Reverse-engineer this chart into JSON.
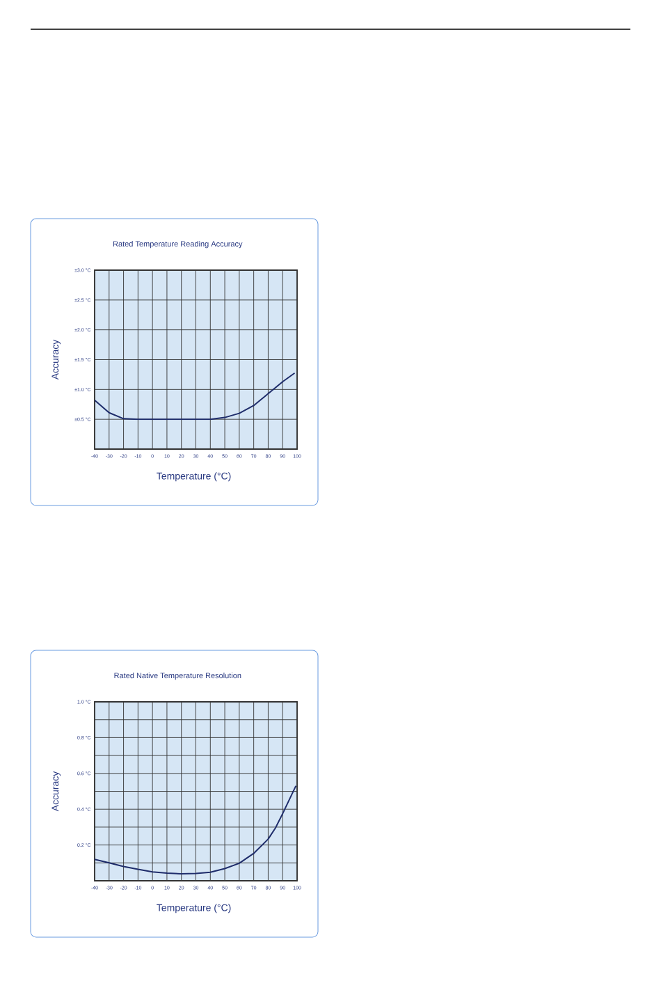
{
  "chart_data": [
    {
      "type": "line",
      "title": "Rated Temperature Reading Accuracy",
      "xlabel": "Temperature (°C)",
      "ylabel": "Accuracy",
      "color": "#1f2d6b",
      "grid": true,
      "x": [
        -40,
        -30,
        -20,
        -10,
        0,
        10,
        20,
        30,
        40,
        50,
        60,
        70,
        80,
        90,
        98
      ],
      "values": [
        0.82,
        0.61,
        0.51,
        0.5,
        0.5,
        0.5,
        0.5,
        0.5,
        0.5,
        0.53,
        0.6,
        0.73,
        0.93,
        1.13,
        1.27
      ],
      "xlim": [
        -40,
        100
      ],
      "ylim": [
        0,
        3
      ],
      "xticks": [
        -40,
        -30,
        -20,
        -10,
        0,
        10,
        20,
        30,
        40,
        50,
        60,
        70,
        80,
        90,
        100
      ],
      "yticks": [
        {
          "value": 0.5,
          "label": "±0.5 °C"
        },
        {
          "value": 1.0,
          "label": "±1.0 °C"
        },
        {
          "value": 1.5,
          "label": "±1.5 °C"
        },
        {
          "value": 2.0,
          "label": "±2.0 °C"
        },
        {
          "value": 2.5,
          "label": "±2.5 °C"
        },
        {
          "value": 3.0,
          "label": "±3.0 °C"
        }
      ]
    },
    {
      "type": "line",
      "title": "Rated Native Temperature Resolution",
      "xlabel": "Temperature (°C)",
      "ylabel": "Accuracy",
      "color": "#1f2d6b",
      "grid": true,
      "x": [
        -40,
        -30,
        -20,
        -10,
        0,
        10,
        20,
        30,
        40,
        50,
        60,
        70,
        80,
        85,
        90,
        99
      ],
      "values": [
        0.12,
        0.1,
        0.08,
        0.064,
        0.05,
        0.043,
        0.039,
        0.041,
        0.048,
        0.068,
        0.098,
        0.153,
        0.233,
        0.295,
        0.375,
        0.528
      ],
      "xlim": [
        -40,
        100
      ],
      "ylim": [
        0,
        1
      ],
      "xticks": [
        -40,
        -30,
        -20,
        -10,
        0,
        10,
        20,
        30,
        40,
        50,
        60,
        70,
        80,
        90,
        100
      ],
      "yticks": [
        {
          "value": 0.1,
          "label": null
        },
        {
          "value": 0.2,
          "label": "0.2 °C"
        },
        {
          "value": 0.3,
          "label": null
        },
        {
          "value": 0.4,
          "label": "0.4 °C"
        },
        {
          "value": 0.5,
          "label": null
        },
        {
          "value": 0.6,
          "label": "0.6 °C"
        },
        {
          "value": 0.7,
          "label": null
        },
        {
          "value": 0.8,
          "label": "0.8 °C"
        },
        {
          "value": 0.9,
          "label": null
        },
        {
          "value": 1.0,
          "label": "1.0 °C"
        }
      ]
    }
  ]
}
